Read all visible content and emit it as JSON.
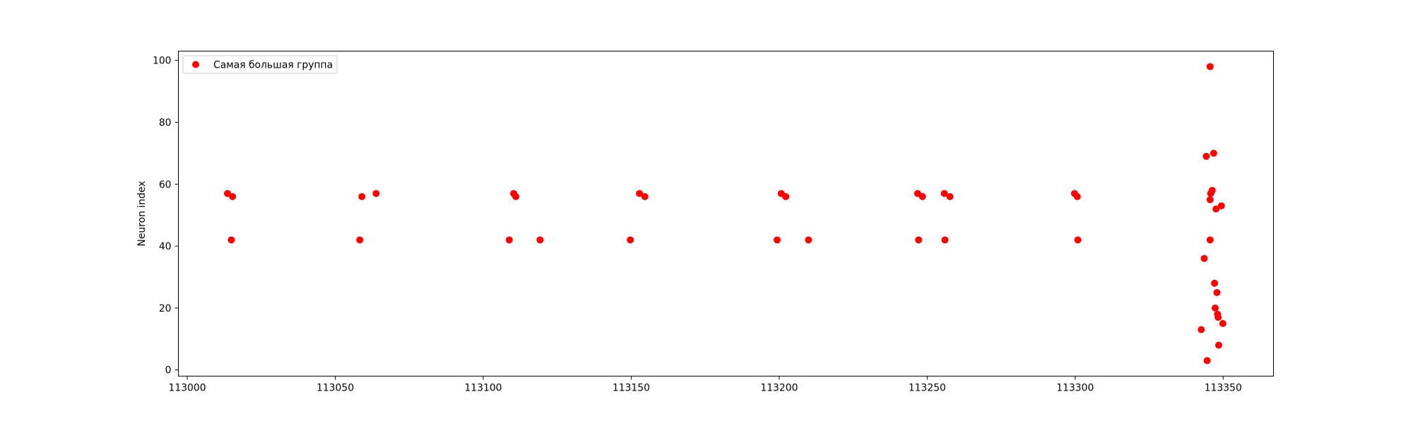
{
  "chart_data": {
    "type": "scatter",
    "title": "",
    "xlabel": "",
    "ylabel": "Neuron index",
    "xlim": [
      112997,
      113367
    ],
    "ylim": [
      -2,
      103
    ],
    "xticks": [
      113000,
      113050,
      113100,
      113150,
      113200,
      113250,
      113300,
      113350
    ],
    "yticks": [
      0,
      20,
      40,
      60,
      80,
      100
    ],
    "grid": false,
    "legend_position": "top-left",
    "series": [
      {
        "name": "Самая большая группа",
        "color": "#ff0000",
        "points": [
          [
            113013.6,
            57
          ],
          [
            113015.3,
            56
          ],
          [
            113014.9,
            42
          ],
          [
            113058.3,
            42
          ],
          [
            113059.0,
            56
          ],
          [
            113063.8,
            57
          ],
          [
            113108.8,
            42
          ],
          [
            113110.3,
            57
          ],
          [
            113111.0,
            56
          ],
          [
            113119.2,
            42
          ],
          [
            113149.7,
            42
          ],
          [
            113152.8,
            57
          ],
          [
            113154.6,
            56
          ],
          [
            113199.3,
            42
          ],
          [
            113200.7,
            57
          ],
          [
            113202.2,
            56
          ],
          [
            113209.9,
            42
          ],
          [
            113246.8,
            57
          ],
          [
            113247.1,
            42
          ],
          [
            113248.4,
            56
          ],
          [
            113255.8,
            57
          ],
          [
            113256.0,
            42
          ],
          [
            113257.7,
            56
          ],
          [
            113299.8,
            57
          ],
          [
            113300.7,
            56
          ],
          [
            113300.9,
            42
          ],
          [
            113342.6,
            13
          ],
          [
            113343.6,
            36
          ],
          [
            113344.3,
            69
          ],
          [
            113344.6,
            3
          ],
          [
            113345.6,
            98
          ],
          [
            113345.6,
            42
          ],
          [
            113345.6,
            55
          ],
          [
            113345.8,
            57
          ],
          [
            113346.3,
            58
          ],
          [
            113346.8,
            70
          ],
          [
            113347.1,
            28
          ],
          [
            113347.3,
            20
          ],
          [
            113347.6,
            52
          ],
          [
            113347.9,
            25
          ],
          [
            113348.1,
            18
          ],
          [
            113348.3,
            17
          ],
          [
            113348.5,
            8
          ],
          [
            113349.4,
            53
          ],
          [
            113349.9,
            15
          ]
        ]
      }
    ]
  }
}
